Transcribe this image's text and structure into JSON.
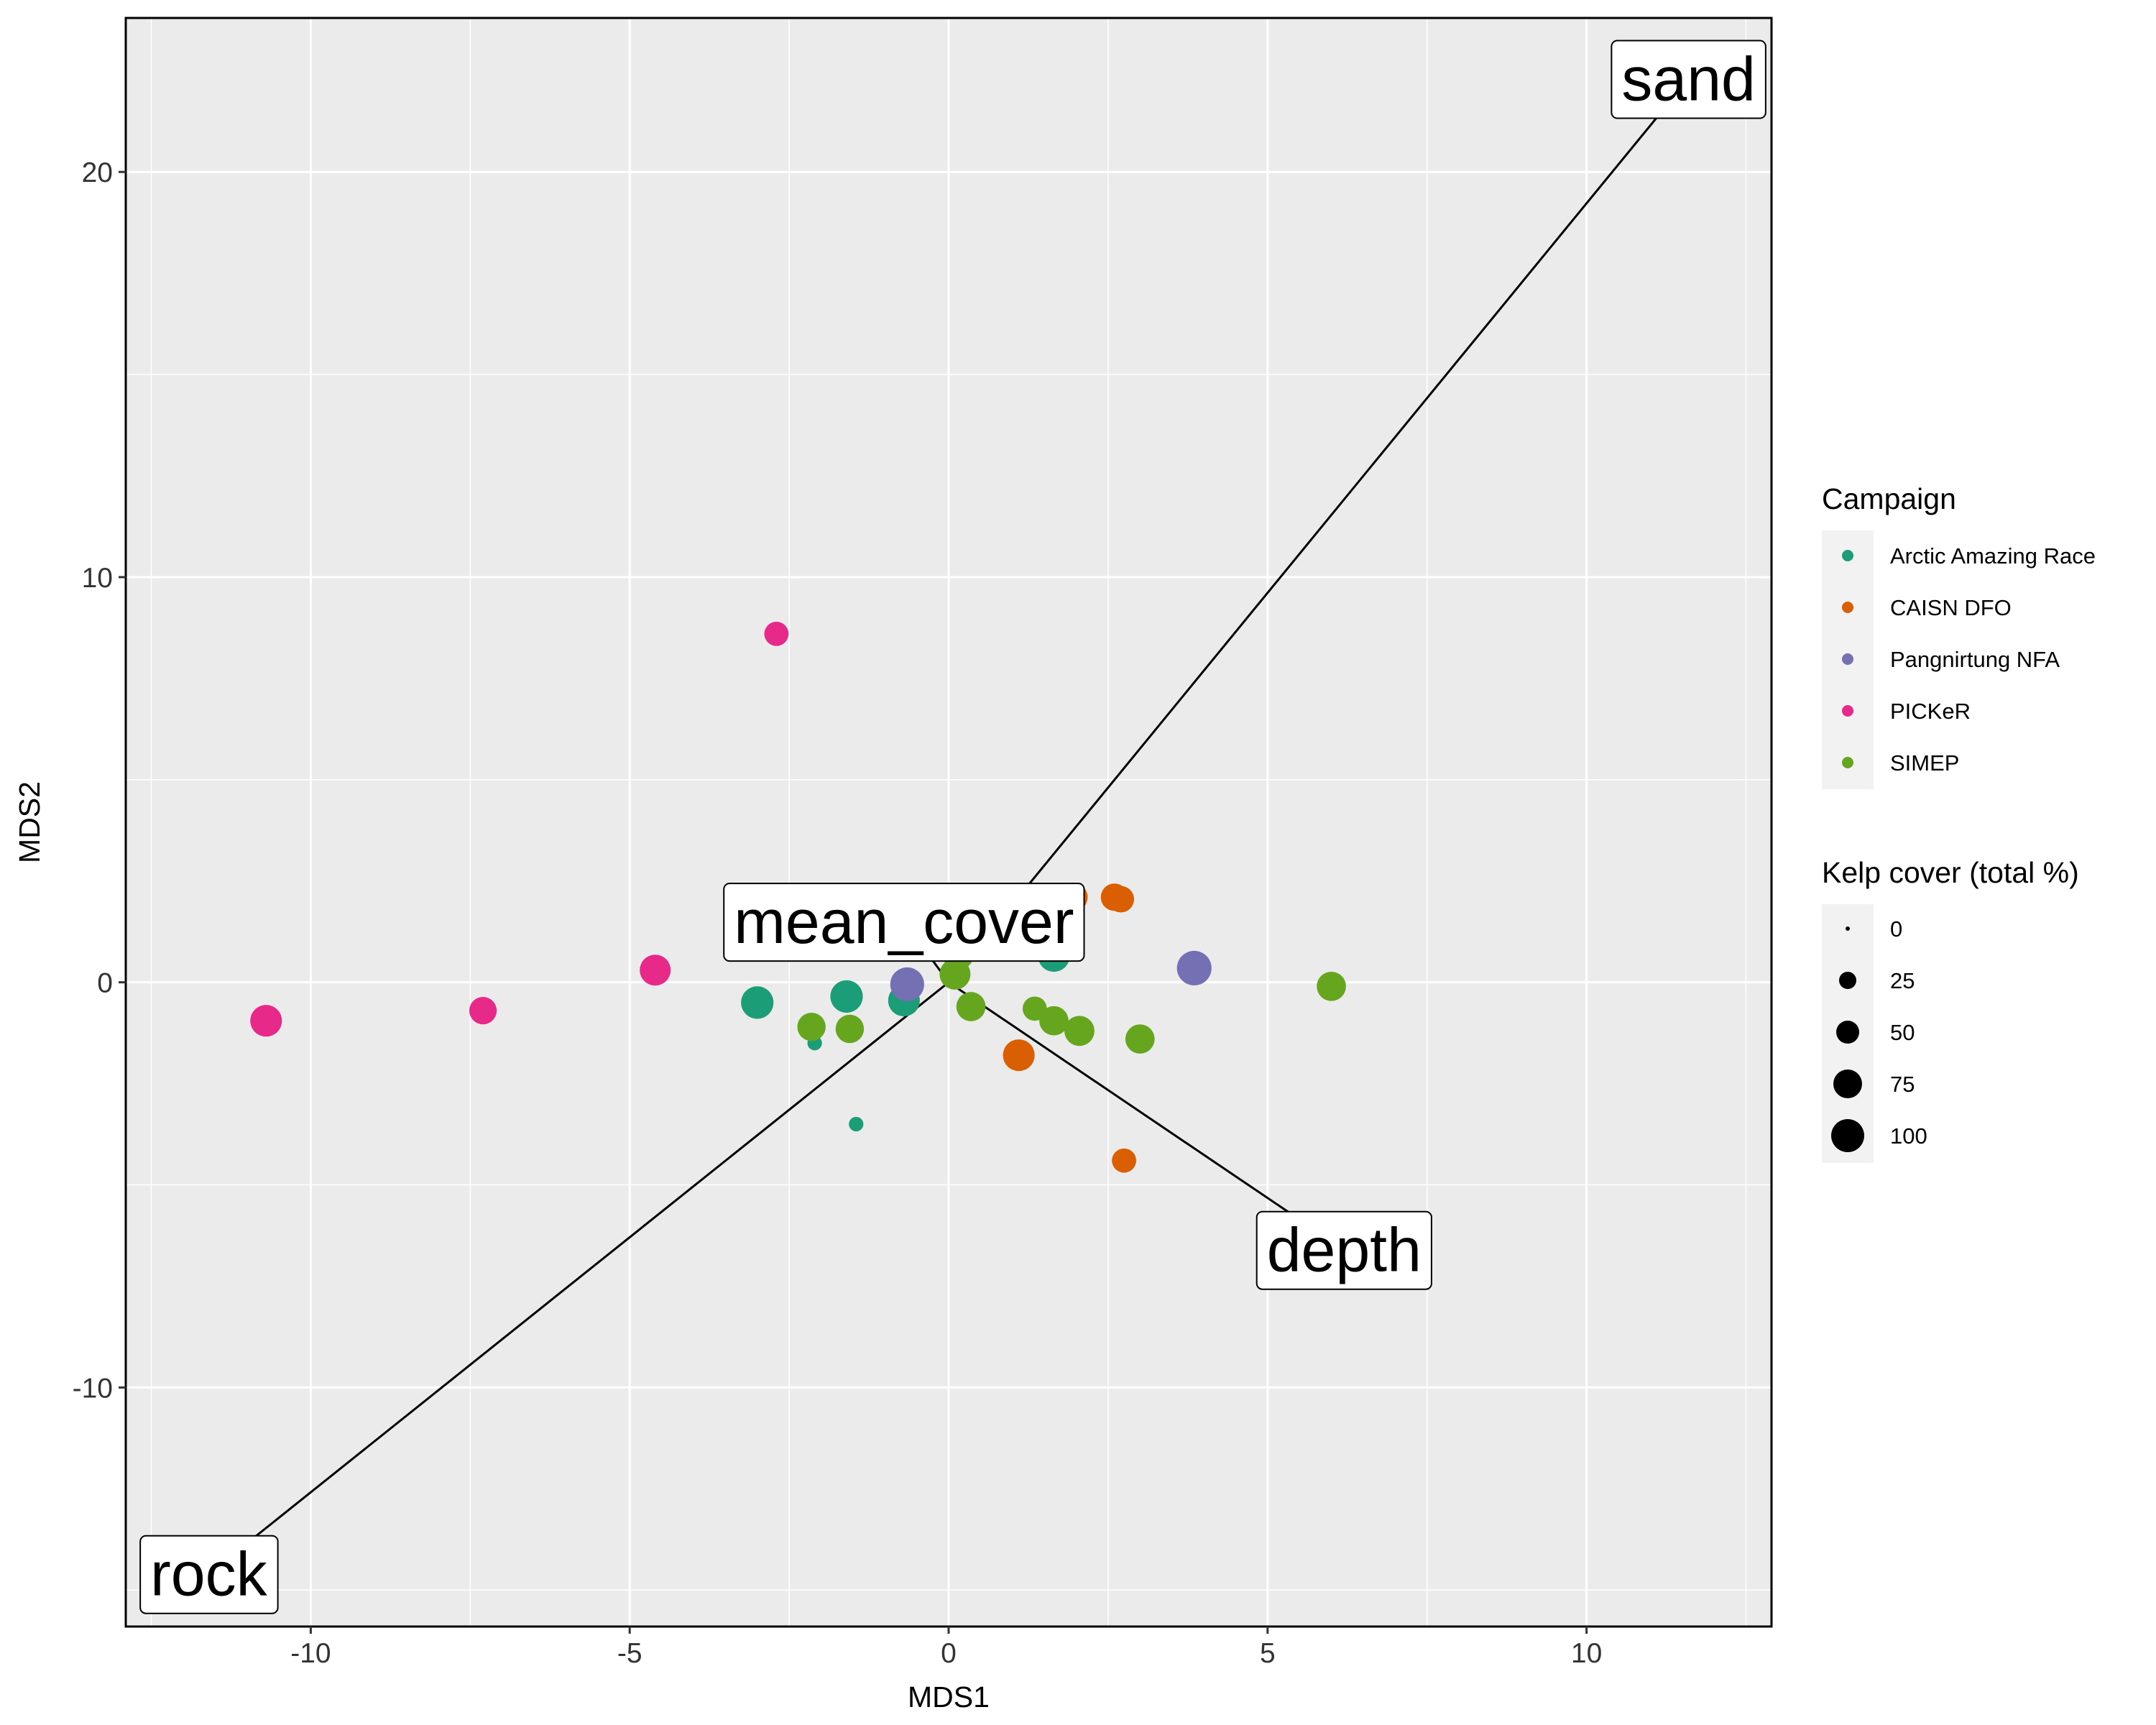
{
  "chart_data": {
    "type": "scatter",
    "xlabel": "MDS1",
    "ylabel": "MDS2",
    "xlim": [
      -12.9,
      12.9
    ],
    "ylim": [
      -15.9,
      23.8
    ],
    "x_ticks": [
      -10,
      -5,
      0,
      5,
      10
    ],
    "y_ticks": [
      -10,
      0,
      10,
      20
    ],
    "x_tick_labels": [
      "-10",
      "-5",
      "0",
      "5",
      "10"
    ],
    "y_tick_labels": [
      "-10",
      "0",
      "10",
      "20"
    ],
    "grid": true,
    "legend_position": "right",
    "color_legend": {
      "title": "Campaign",
      "entries": [
        {
          "name": "Arctic Amazing Race",
          "color": "#1B9E77"
        },
        {
          "name": "CAISN DFO",
          "color": "#D95F02"
        },
        {
          "name": "Pangnirtung NFA",
          "color": "#7570B3"
        },
        {
          "name": "PICKeR",
          "color": "#E7298A"
        },
        {
          "name": "SIMEP",
          "color": "#66A61E"
        }
      ]
    },
    "size_legend": {
      "title": "Kelp cover (total %)",
      "values": [
        0,
        25,
        50,
        75,
        100
      ],
      "labels": [
        "0",
        "25",
        "50",
        "75",
        "100"
      ]
    },
    "series": [
      {
        "name": "Arctic Amazing Race",
        "color": "#1B9E77",
        "points": [
          {
            "x": -3.0,
            "y": -0.5,
            "cover": 75
          },
          {
            "x": -1.6,
            "y": -0.35,
            "cover": 75
          },
          {
            "x": -0.7,
            "y": -0.45,
            "cover": 70
          },
          {
            "x": 0.1,
            "y": 1.8,
            "cover": 55
          },
          {
            "x": 1.65,
            "y": 0.65,
            "cover": 70
          },
          {
            "x": -2.1,
            "y": -1.5,
            "cover": 3
          },
          {
            "x": -1.45,
            "y": -3.5,
            "cover": 3
          }
        ]
      },
      {
        "name": "CAISN DFO",
        "color": "#D95F02",
        "points": [
          {
            "x": -0.8,
            "y": 1.1,
            "cover": 70
          },
          {
            "x": -0.35,
            "y": 1.2,
            "cover": 65
          },
          {
            "x": 1.95,
            "y": 2.1,
            "cover": 55
          },
          {
            "x": 2.6,
            "y": 2.1,
            "cover": 45
          },
          {
            "x": 2.7,
            "y": 2.05,
            "cover": 40
          },
          {
            "x": 1.1,
            "y": -1.8,
            "cover": 70
          },
          {
            "x": 2.75,
            "y": -4.4,
            "cover": 30
          }
        ]
      },
      {
        "name": "Pangnirtung NFA",
        "color": "#7570B3",
        "points": [
          {
            "x": -0.65,
            "y": -0.05,
            "cover": 85
          },
          {
            "x": 3.85,
            "y": 0.35,
            "cover": 90
          }
        ]
      },
      {
        "name": "PICKeR",
        "color": "#E7298A",
        "points": [
          {
            "x": -2.7,
            "y": 8.6,
            "cover": 30
          },
          {
            "x": -4.6,
            "y": 0.3,
            "cover": 65
          },
          {
            "x": -7.3,
            "y": -0.7,
            "cover": 45
          },
          {
            "x": -10.7,
            "y": -0.95,
            "cover": 70
          }
        ]
      },
      {
        "name": "SIMEP",
        "color": "#66A61E",
        "points": [
          {
            "x": -2.0,
            "y": 1.9,
            "cover": 75
          },
          {
            "x": 0.0,
            "y": 1.0,
            "cover": 60
          },
          {
            "x": 0.15,
            "y": 0.7,
            "cover": 70
          },
          {
            "x": 1.6,
            "y": 1.15,
            "cover": 70
          },
          {
            "x": 0.1,
            "y": 0.2,
            "cover": 65
          },
          {
            "x": 0.35,
            "y": -0.6,
            "cover": 55
          },
          {
            "x": -2.15,
            "y": -1.1,
            "cover": 50
          },
          {
            "x": -1.55,
            "y": -1.15,
            "cover": 50
          },
          {
            "x": 1.35,
            "y": -0.65,
            "cover": 30
          },
          {
            "x": 1.65,
            "y": -0.95,
            "cover": 55
          },
          {
            "x": 2.05,
            "y": -1.2,
            "cover": 60
          },
          {
            "x": 3.0,
            "y": -1.4,
            "cover": 55
          },
          {
            "x": 6.0,
            "y": -0.1,
            "cover": 55
          }
        ]
      }
    ],
    "arrows": [
      {
        "label": "sand",
        "x": 11.6,
        "y": 22.3
      },
      {
        "label": "rock",
        "x": -11.6,
        "y": -14.6
      },
      {
        "label": "depth",
        "x": 6.2,
        "y": -6.6
      },
      {
        "label": "mean_cover",
        "x": -0.7,
        "y": 1.5
      }
    ]
  }
}
